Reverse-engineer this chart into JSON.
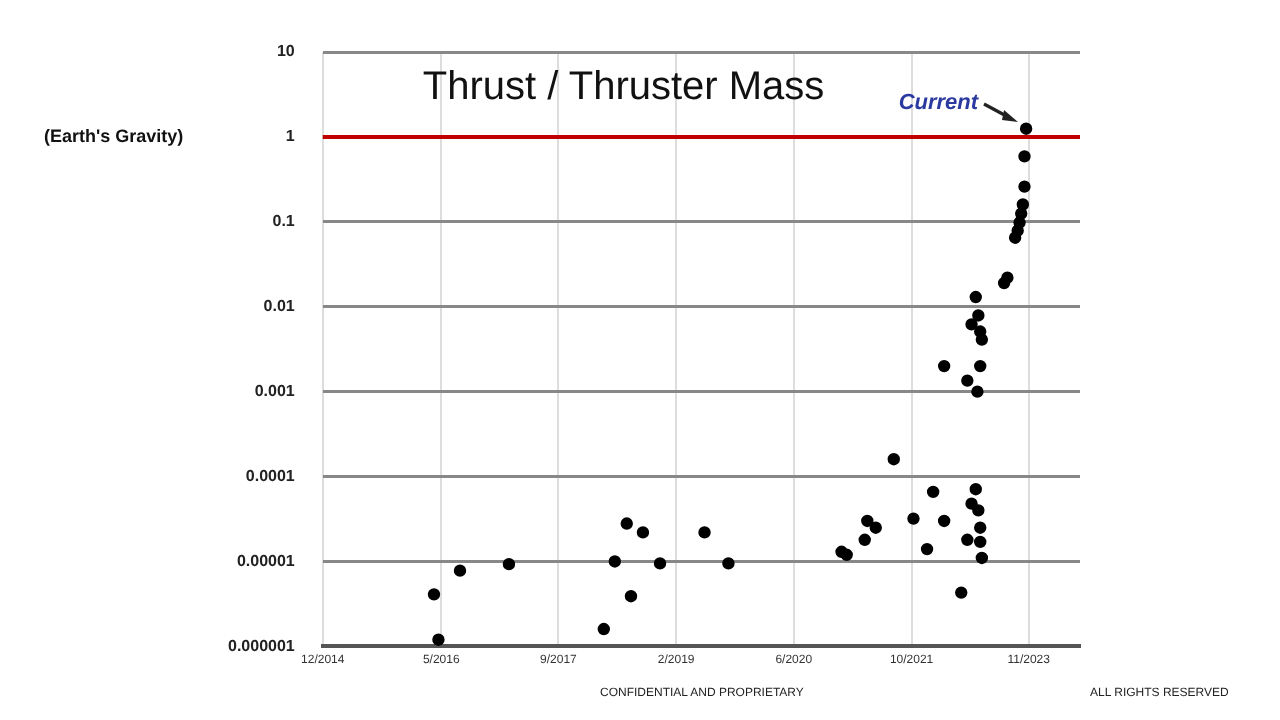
{
  "chart_data": {
    "type": "scatter",
    "title": "Thrust / Thruster Mass",
    "ylabel": "(Earth's Gravity)",
    "annotations": [
      {
        "text": "Current",
        "x": "2023-02-20",
        "y": 1.25
      },
      "CONFIDENTIAL AND PROPRIETARY",
      "ALL RIGHTS RESERVED"
    ],
    "x": [
      "2016-03-20",
      "2016-04-08",
      "2016-07-09",
      "2017-02-03",
      "2018-03-15",
      "2018-05-01",
      "2018-06-21",
      "2018-07-09",
      "2018-08-29",
      "2018-11-10",
      "2019-05-19",
      "2019-08-29",
      "2020-12-24",
      "2021-01-15",
      "2021-04-02",
      "2021-04-13",
      "2021-05-19",
      "2021-08-04",
      "2021-10-27",
      "2021-12-24",
      "2022-01-19",
      "2022-03-07",
      "2022-03-07",
      "2022-05-19",
      "2022-06-14",
      "2022-06-14",
      "2022-07-02",
      "2022-07-02",
      "2022-07-20",
      "2022-07-20",
      "2022-07-27",
      "2022-07-31",
      "2022-07-31",
      "2022-08-08",
      "2022-08-15",
      "2022-08-08",
      "2022-08-08",
      "2022-08-08",
      "2022-08-15",
      "2022-11-18",
      "2022-12-02",
      "2023-01-04",
      "2023-01-15",
      "2023-01-23",
      "2023-01-30",
      "2023-02-06",
      "2023-02-13",
      "2023-02-13",
      "2023-02-20"
    ],
    "values": [
      4.1e-06,
      1.2e-06,
      7.8e-06,
      9.3e-06,
      1.6e-06,
      1e-05,
      2.8e-05,
      3.9e-06,
      2.2e-05,
      9.5e-06,
      2.2e-05,
      9.5e-06,
      1.3e-05,
      1.2e-05,
      1.8e-05,
      3e-05,
      2.5e-05,
      0.00016,
      3.2e-05,
      1.4e-05,
      6.6e-05,
      3e-05,
      0.002,
      4.3e-06,
      0.00135,
      1.8e-05,
      0.0062,
      4.8e-05,
      0.013,
      7.1e-05,
      0.001,
      0.0079,
      4e-05,
      0.0051,
      0.0041,
      0.002,
      2.5e-05,
      1.7e-05,
      1.1e-05,
      0.019,
      0.022,
      0.065,
      0.079,
      0.098,
      0.125,
      0.16,
      0.26,
      0.59,
      1.25
    ],
    "color": "#000000",
    "marker": "circle",
    "xlim": [
      "2014-12-01",
      "2023-10-08"
    ],
    "xticks": [
      {
        "value": "2014-12-01",
        "label": "12/2014"
      },
      {
        "value": "2016-04-20",
        "label": "5/2016"
      },
      {
        "value": "2017-09-02",
        "label": "9/2017"
      },
      {
        "value": "2019-01-18",
        "label": "2/2019"
      },
      {
        "value": "2020-06-03",
        "label": "6/2020"
      },
      {
        "value": "2021-10-19",
        "label": "10/2021"
      },
      {
        "value": "2023-03-03",
        "label": "11/2023"
      }
    ],
    "ylim": [
      1e-06,
      10
    ],
    "yticks": [
      {
        "value": 1e-06,
        "label": "0.000001"
      },
      {
        "value": 1e-05,
        "label": "0.00001"
      },
      0.0001,
      0.001,
      0.01,
      0.1,
      1,
      10
    ],
    "log": "y",
    "grid": true,
    "ref_lines": [
      {
        "axis": "y",
        "value": 1,
        "color": "#c00000"
      }
    ]
  }
}
